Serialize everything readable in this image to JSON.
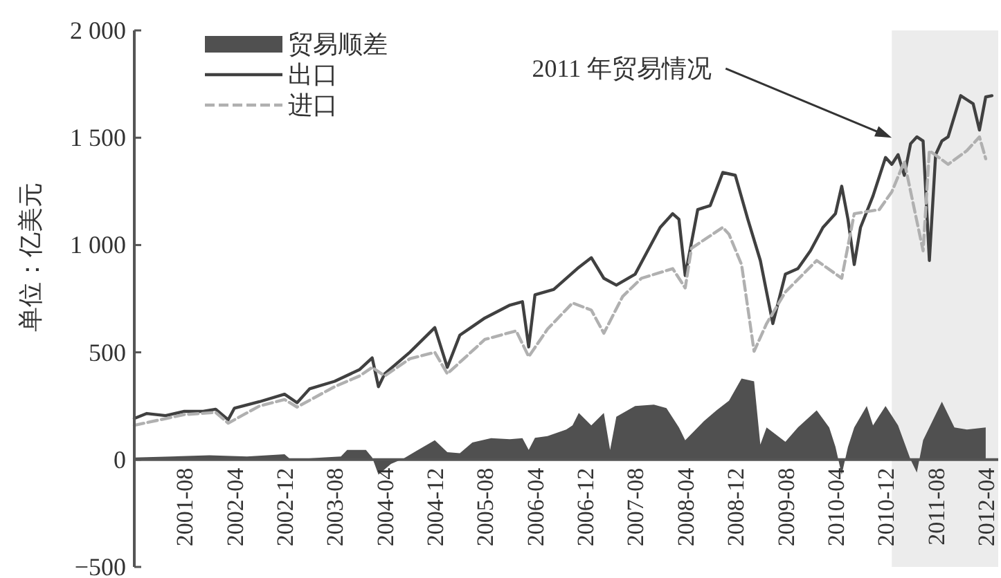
{
  "chart_data": {
    "type": "line",
    "ylabel": "单位：亿美元",
    "xlim": [
      "2000-12",
      "2012-06"
    ],
    "xticks": [
      "2001-08",
      "2002-04",
      "2002-12",
      "2003-08",
      "2004-04",
      "2004-12",
      "2005-08",
      "2006-04",
      "2006-12",
      "2007-08",
      "2008-04",
      "2008-12",
      "2009-08",
      "2010-04",
      "2010-12",
      "2011-08",
      "2012-04"
    ],
    "ylim": [
      -500,
      2000
    ],
    "yticks": [
      {
        "value": -500,
        "label": "−500"
      },
      0,
      500,
      {
        "value": 1000,
        "label": "1 000"
      },
      {
        "value": 1500,
        "label": "1 500"
      },
      {
        "value": 2000,
        "label": "2 000"
      }
    ],
    "legend": "top left",
    "grid": false,
    "bands": [
      {
        "axis": "x",
        "from": "2011-01",
        "to": "2012-06",
        "color": "#ececec"
      }
    ],
    "annotations": [
      {
        "text": "2011 年贸易情况",
        "x": "2011-01",
        "y": 1500
      }
    ],
    "series": [
      {
        "name": "贸易顺差",
        "type": "area",
        "color": "#505050",
        "x": [
          "2000-12",
          "2001-06",
          "2001-12",
          "2002-06",
          "2002-12",
          "2003-01",
          "2003-06",
          "2003-09",
          "2003-10",
          "2004-01",
          "2004-02",
          "2004-03",
          "2004-05",
          "2004-07",
          "2004-09",
          "2004-12",
          "2005-02",
          "2005-04",
          "2005-06",
          "2005-09",
          "2005-12",
          "2006-02",
          "2006-03",
          "2006-04",
          "2006-06",
          "2006-09",
          "2006-10",
          "2006-11",
          "2007-01",
          "2007-03",
          "2007-04",
          "2007-05",
          "2007-08",
          "2007-11",
          "2008-01",
          "2008-03",
          "2008-04",
          "2008-07",
          "2008-09",
          "2008-11",
          "2009-01",
          "2009-03",
          "2009-04",
          "2009-05",
          "2009-08",
          "2009-10",
          "2010-01",
          "2010-03",
          "2010-04",
          "2010-05",
          "2010-06",
          "2010-07",
          "2010-09",
          "2010-10",
          "2010-12",
          "2011-02",
          "2011-04",
          "2011-05",
          "2011-06",
          "2011-09",
          "2011-11",
          "2012-01",
          "2012-04"
        ],
        "values": [
          10,
          15,
          20,
          15,
          25,
          0,
          10,
          15,
          45,
          45,
          10,
          -70,
          -20,
          5,
          40,
          90,
          35,
          30,
          80,
          100,
          95,
          100,
          45,
          102,
          110,
          140,
          160,
          218,
          160,
          218,
          45,
          200,
          250,
          256,
          240,
          150,
          90,
          180,
          230,
          275,
          378,
          365,
          70,
          150,
          83,
          150,
          230,
          150,
          60,
          -70,
          60,
          150,
          250,
          160,
          250,
          160,
          0,
          -60,
          90,
          270,
          150,
          140,
          150
        ]
      },
      {
        "name": "出口",
        "color": "#404040",
        "line_style": "solid",
        "x": [
          "2000-12",
          "2001-02",
          "2001-05",
          "2001-08",
          "2001-11",
          "2002-01",
          "2002-03",
          "2002-04",
          "2002-08",
          "2002-12",
          "2003-02",
          "2003-04",
          "2003-08",
          "2003-12",
          "2004-02",
          "2004-03",
          "2004-04",
          "2004-08",
          "2004-12",
          "2005-02",
          "2005-04",
          "2005-06",
          "2005-08",
          "2005-12",
          "2006-02",
          "2006-03",
          "2006-04",
          "2006-07",
          "2006-11",
          "2007-01",
          "2007-03",
          "2007-05",
          "2007-08",
          "2007-10",
          "2007-12",
          "2008-02",
          "2008-03",
          "2008-04",
          "2008-06",
          "2008-08",
          "2008-10",
          "2008-12",
          "2009-02",
          "2009-04",
          "2009-06",
          "2009-08",
          "2009-10",
          "2009-12",
          "2010-02",
          "2010-04",
          "2010-05",
          "2010-06",
          "2010-07",
          "2010-08",
          "2010-10",
          "2010-12",
          "2011-01",
          "2011-02",
          "2011-03",
          "2011-04",
          "2011-05",
          "2011-06",
          "2011-07",
          "2011-08",
          "2011-09",
          "2011-10",
          "2011-12",
          "2012-01",
          "2012-02",
          "2012-03",
          "2012-04",
          "2012-05"
        ],
        "values": [
          192,
          215,
          205,
          225,
          225,
          235,
          186,
          240,
          270,
          305,
          265,
          330,
          365,
          420,
          474,
          340,
          400,
          500,
          615,
          430,
          580,
          620,
          660,
          720,
          736,
          525,
          768,
          793,
          896,
          941,
          845,
          813,
          864,
          973,
          1082,
          1146,
          1120,
          858,
          1165,
          1184,
          1338,
          1325,
          1120,
          928,
          634,
          864,
          890,
          973,
          1082,
          1146,
          1274,
          1120,
          909,
          1082,
          1229,
          1408,
          1376,
          1421,
          1325,
          1472,
          1504,
          1485,
          928,
          1421,
          1485,
          1504,
          1696,
          1677,
          1658,
          1536,
          1690,
          1696
        ]
      },
      {
        "name": "进口",
        "color": "#b0b0b0",
        "line_style": "dashed",
        "x": [
          "2000-12",
          "2001-08",
          "2002-01",
          "2002-03",
          "2002-08",
          "2002-12",
          "2003-02",
          "2003-08",
          "2003-12",
          "2004-02",
          "2004-04",
          "2004-08",
          "2004-12",
          "2005-02",
          "2005-08",
          "2006-01",
          "2006-03",
          "2006-06",
          "2006-10",
          "2007-01",
          "2007-03",
          "2007-06",
          "2007-09",
          "2008-02",
          "2008-04",
          "2008-05",
          "2008-10",
          "2008-11",
          "2009-01",
          "2009-03",
          "2009-05",
          "2009-08",
          "2010-01",
          "2010-05",
          "2010-07",
          "2010-11",
          "2011-01",
          "2011-03",
          "2011-06",
          "2011-07",
          "2011-10",
          "2012-01",
          "2012-03",
          "2012-04"
        ],
        "values": [
          160,
          210,
          220,
          170,
          250,
          280,
          245,
          340,
          390,
          430,
          390,
          470,
          500,
          400,
          560,
          600,
          480,
          608,
          730,
          697,
          589,
          760,
          845,
          890,
          800,
          985,
          1082,
          1050,
          909,
          505,
          634,
          781,
          928,
          845,
          1146,
          1165,
          1248,
          1389,
          973,
          1440,
          1376,
          1440,
          1504,
          1402
        ]
      }
    ]
  }
}
